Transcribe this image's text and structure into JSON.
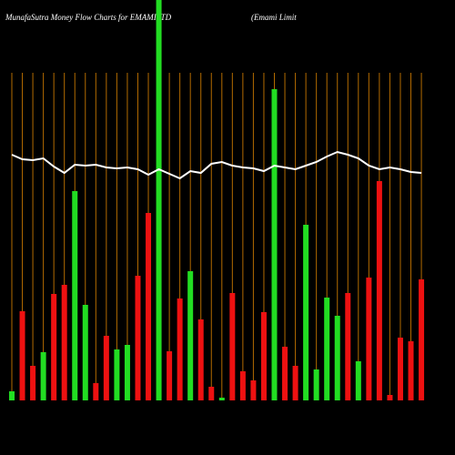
{
  "chart_data": {
    "type": "bar",
    "title": "MunafaSutra  Money Flow  Charts for EMAMILTD",
    "subtitle": "(Emami  Limit",
    "ylim": [
      0,
      440
    ],
    "values": [
      10,
      98,
      38,
      53,
      117,
      127,
      230,
      105,
      19,
      71,
      56,
      61,
      137,
      206,
      440,
      54,
      112,
      142,
      89,
      15,
      3,
      118,
      32,
      22,
      97,
      342,
      59,
      38,
      193,
      34,
      113,
      93,
      118,
      43,
      135,
      241,
      6,
      69,
      65,
      133
    ],
    "colors": [
      "#22dd22",
      "#ee1111",
      "#ee1111",
      "#22dd22",
      "#ee1111",
      "#ee1111",
      "#22dd22",
      "#22dd22",
      "#ee1111",
      "#ee1111",
      "#22dd22",
      "#22dd22",
      "#ee1111",
      "#ee1111",
      "#22dd22",
      "#ee1111",
      "#ee1111",
      "#22dd22",
      "#ee1111",
      "#ee1111",
      "#22dd22",
      "#ee1111",
      "#ee1111",
      "#ee1111",
      "#ee1111",
      "#22dd22",
      "#ee1111",
      "#ee1111",
      "#22dd22",
      "#22dd22",
      "#22dd22",
      "#22dd22",
      "#ee1111",
      "#22dd22",
      "#ee1111",
      "#ee1111",
      "#ee1111",
      "#ee1111",
      "#ee1111",
      "#ee1111"
    ],
    "line": {
      "color": "#ffffff",
      "values": [
        270,
        265,
        264,
        266,
        257,
        250,
        259,
        258,
        259,
        256,
        255,
        256,
        254,
        248,
        254,
        249,
        244,
        252,
        250,
        260,
        262,
        258,
        256,
        255,
        252,
        258,
        256,
        254,
        258,
        262,
        268,
        273,
        270,
        266,
        258,
        254,
        256,
        254,
        251,
        250
      ]
    }
  }
}
